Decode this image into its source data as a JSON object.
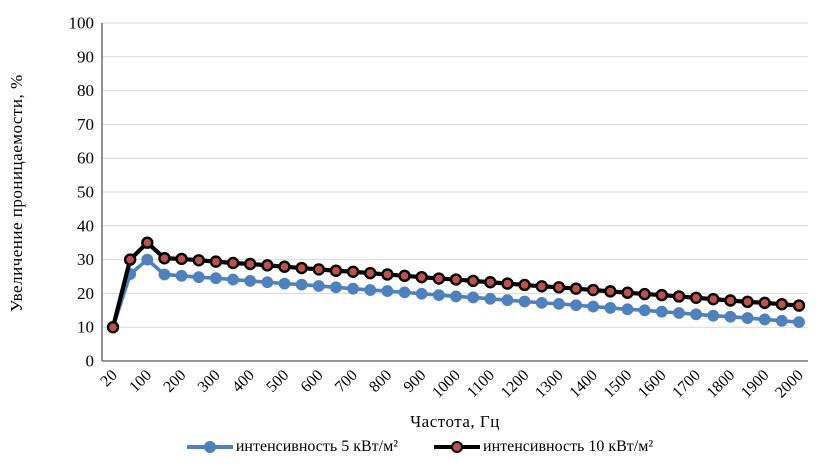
{
  "chart_data": {
    "type": "line",
    "title": "",
    "xlabel": "Частота, Гц",
    "ylabel": "Увеличение проницаемости, %",
    "ylim": [
      0,
      100
    ],
    "yticks": [
      0,
      10,
      20,
      30,
      40,
      50,
      60,
      70,
      80,
      90,
      100
    ],
    "grid": "horizontal",
    "legend_position": "bottom",
    "x_categories": [
      20,
      50,
      100,
      150,
      200,
      250,
      300,
      350,
      400,
      450,
      500,
      550,
      600,
      650,
      700,
      750,
      800,
      850,
      900,
      950,
      1000,
      1050,
      1100,
      1150,
      1200,
      1250,
      1300,
      1350,
      1400,
      1450,
      1500,
      1550,
      1600,
      1650,
      1700,
      1750,
      1800,
      1850,
      1900,
      1950,
      2000
    ],
    "xtick_labels": [
      "20",
      "100",
      "200",
      "300",
      "400",
      "500",
      "600",
      "700",
      "800",
      "900",
      "1000",
      "1100",
      "1200",
      "1300",
      "1400",
      "1500",
      "1600",
      "1700",
      "1800",
      "1900",
      "2000"
    ],
    "series": [
      {
        "name": "интенсивность 5 кВт/м²",
        "line_color": "#4F81BD",
        "marker_color": "#4F81BD",
        "marker_stroke": "#4F81BD",
        "values": [
          10,
          25.7,
          30,
          25.6,
          25.2,
          24.8,
          24.5,
          24.1,
          23.7,
          23.3,
          22.9,
          22.6,
          22.2,
          21.8,
          21.4,
          21.0,
          20.7,
          20.3,
          19.9,
          19.5,
          19.1,
          18.8,
          18.4,
          18.0,
          17.6,
          17.2,
          16.9,
          16.5,
          16.1,
          15.7,
          15.3,
          15.0,
          14.6,
          14.2,
          13.8,
          13.4,
          13.1,
          12.7,
          12.3,
          11.9,
          11.5
        ]
      },
      {
        "name": "интенсивность 10 кВт/м²",
        "line_color": "#000000",
        "marker_color": "#C0504D",
        "marker_stroke": "#000000",
        "values": [
          10,
          30,
          35,
          30.4,
          30.2,
          29.8,
          29.4,
          29.0,
          28.7,
          28.3,
          27.9,
          27.5,
          27.1,
          26.7,
          26.4,
          26.0,
          25.6,
          25.2,
          24.8,
          24.4,
          24.1,
          23.7,
          23.3,
          22.9,
          22.5,
          22.1,
          21.8,
          21.4,
          21.0,
          20.6,
          20.2,
          19.8,
          19.5,
          19.1,
          18.7,
          18.3,
          17.9,
          17.5,
          17.2,
          16.8,
          16.4
        ]
      }
    ]
  }
}
